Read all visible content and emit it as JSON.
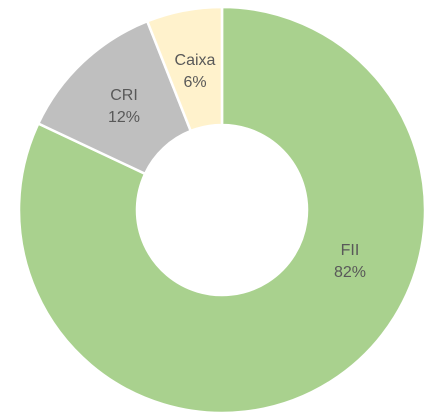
{
  "chart_data": {
    "type": "donut",
    "categories": [
      "FII",
      "CRI",
      "Caixa"
    ],
    "values": [
      82,
      12,
      6
    ],
    "value_labels": [
      "82%",
      "12%",
      "6%"
    ],
    "colors": [
      "#a9d18e",
      "#bfbfbf",
      "#fff2cc"
    ]
  }
}
